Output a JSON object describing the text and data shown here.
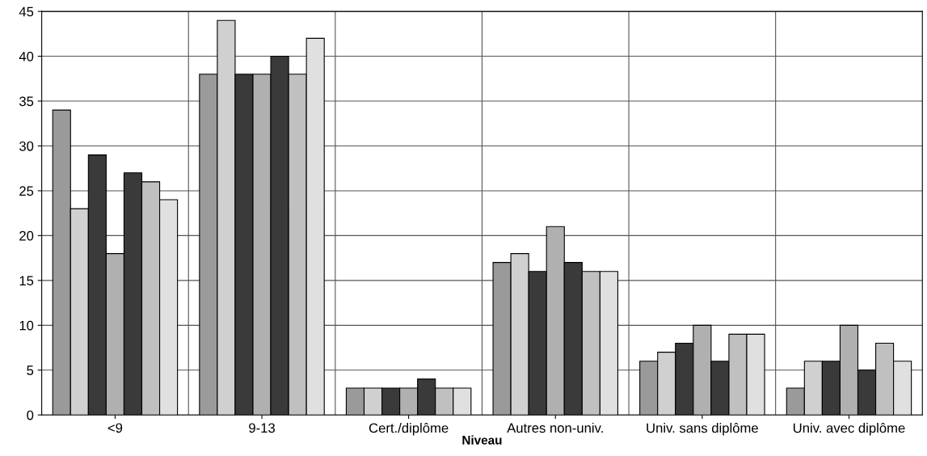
{
  "chart_data": {
    "type": "bar",
    "xlabel": "Niveau",
    "categories": [
      "<9",
      "9-13",
      "Cert./diplôme",
      "Autres non-univ.",
      "Univ. sans diplôme",
      "Univ. avec diplôme"
    ],
    "series": [
      {
        "color": "#9a9a9a",
        "values": [
          34,
          38,
          3,
          17,
          6,
          3
        ]
      },
      {
        "color": "#d0d0d0",
        "values": [
          23,
          44,
          3,
          18,
          7,
          6
        ]
      },
      {
        "color": "#3a3a3a",
        "values": [
          29,
          38,
          3,
          16,
          8,
          6
        ]
      },
      {
        "color": "#b0b0b0",
        "values": [
          18,
          38,
          3,
          21,
          10,
          10
        ]
      },
      {
        "color": "#3a3a3a",
        "values": [
          27,
          40,
          4,
          17,
          6,
          5
        ]
      },
      {
        "color": "#c0c0c0",
        "values": [
          26,
          38,
          3,
          16,
          9,
          8
        ]
      },
      {
        "color": "#e0e0e0",
        "values": [
          24,
          42,
          3,
          16,
          9,
          6
        ]
      }
    ],
    "ylim": [
      0,
      45
    ],
    "yticks": [
      0,
      5,
      10,
      15,
      20,
      25,
      30,
      35,
      40,
      45
    ],
    "grid": "y",
    "legend": false
  }
}
